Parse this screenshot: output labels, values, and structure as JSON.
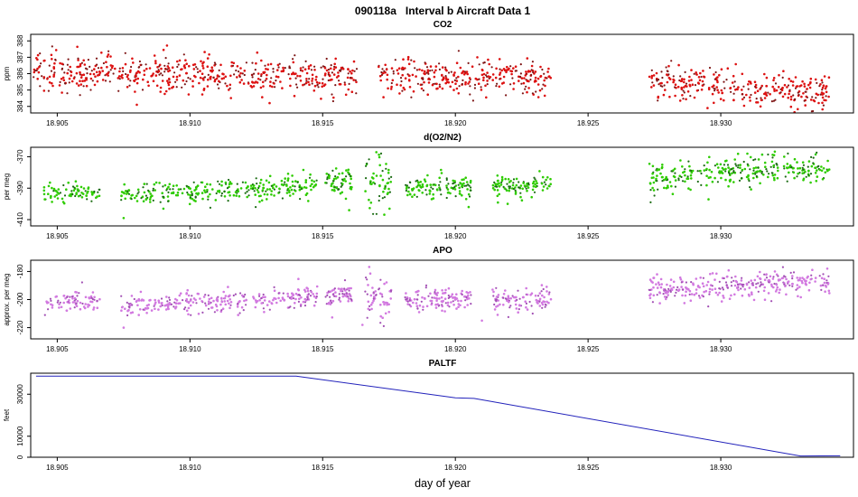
{
  "chart_data": {
    "type": "multi-panel-timeseries",
    "title": "090118a   Interval b Aircraft Data 1",
    "xlabel": "day of year",
    "x_range": [
      18.904,
      18.935
    ],
    "x_ticks": [
      "18.905",
      "18.910",
      "18.915",
      "18.920",
      "18.925",
      "18.930"
    ],
    "panels": [
      {
        "title": "CO2",
        "ylabel": "ppm",
        "type": "scatter",
        "color": "#dd1111",
        "color_dark": "#7e1515",
        "dark_frac": 0.33,
        "seed": 11,
        "y_range": [
          383.6,
          388.4
        ],
        "y_ticks": [
          "384",
          "385",
          "386",
          "387",
          "388"
        ],
        "segments": [
          {
            "x0": 18.9041,
            "x1": 18.9163,
            "y0": 386.1,
            "y1": 385.8,
            "spread": 0.55,
            "n": 560
          },
          {
            "x0": 18.9171,
            "x1": 18.9236,
            "y0": 385.9,
            "y1": 385.7,
            "spread": 0.5,
            "n": 300
          },
          {
            "x0": 18.9273,
            "x1": 18.9341,
            "y0": 385.5,
            "y1": 384.8,
            "spread": 0.5,
            "n": 300
          }
        ],
        "outliers": [
          [
            18.908,
            384.1
          ],
          [
            18.913,
            384.2
          ],
          [
            18.9295,
            383.9
          ],
          [
            18.9315,
            384.0
          ]
        ]
      },
      {
        "title": "d(O2/N2)",
        "ylabel": "per meg",
        "type": "scatter",
        "color": "#2ecc00",
        "color_dark": "#1a6b12",
        "dark_frac": 0.33,
        "seed": 22,
        "y_range": [
          -414,
          -364
        ],
        "y_ticks": [
          "-370",
          "-390",
          "-410"
        ],
        "segments": [
          {
            "x0": 18.9045,
            "x1": 18.9066,
            "y0": -393,
            "y1": -392,
            "spread": 3.5,
            "n": 80
          },
          {
            "x0": 18.9074,
            "x1": 18.9148,
            "y0": -394,
            "y1": -389,
            "spread": 3.5,
            "n": 280
          },
          {
            "x0": 18.9151,
            "x1": 18.9161,
            "y0": -386,
            "y1": -385,
            "spread": 4,
            "n": 60
          },
          {
            "x0": 18.9166,
            "x1": 18.9176,
            "y0": -388,
            "y1": -387,
            "spread": 8,
            "n": 55
          },
          {
            "x0": 18.9181,
            "x1": 18.9206,
            "y0": -390,
            "y1": -389,
            "spread": 3.5,
            "n": 120
          },
          {
            "x0": 18.9214,
            "x1": 18.9236,
            "y0": -389.5,
            "y1": -388.5,
            "spread": 3.5,
            "n": 100
          },
          {
            "x0": 18.9273,
            "x1": 18.9341,
            "y0": -383,
            "y1": -376,
            "spread": 4.5,
            "n": 300
          }
        ],
        "outliers": [
          [
            18.9075,
            -409
          ],
          [
            18.909,
            -403
          ],
          [
            18.916,
            -404
          ],
          [
            18.9205,
            -402
          ]
        ]
      },
      {
        "title": "APO",
        "ylabel": "approx. per meg",
        "type": "scatter",
        "color": "#d279e0",
        "color_dark": "#a24fb4",
        "dark_frac": 0.33,
        "seed": 33,
        "y_range": [
          -228,
          -172
        ],
        "y_ticks": [
          "-180",
          "-200",
          "-220"
        ],
        "segments": [
          {
            "x0": 18.9045,
            "x1": 18.9066,
            "y0": -202,
            "y1": -201,
            "spread": 3.5,
            "n": 80
          },
          {
            "x0": 18.9074,
            "x1": 18.9148,
            "y0": -204,
            "y1": -199,
            "spread": 4,
            "n": 280
          },
          {
            "x0": 18.9151,
            "x1": 18.9161,
            "y0": -197,
            "y1": -196,
            "spread": 4,
            "n": 60
          },
          {
            "x0": 18.9166,
            "x1": 18.9176,
            "y0": -198,
            "y1": -197,
            "spread": 9,
            "n": 55
          },
          {
            "x0": 18.9181,
            "x1": 18.9206,
            "y0": -200,
            "y1": -199,
            "spread": 4,
            "n": 120
          },
          {
            "x0": 18.9214,
            "x1": 18.9236,
            "y0": -201,
            "y1": -200,
            "spread": 4,
            "n": 100
          },
          {
            "x0": 18.9273,
            "x1": 18.9341,
            "y0": -193,
            "y1": -186,
            "spread": 4.5,
            "n": 300
          }
        ],
        "outliers": [
          [
            18.9075,
            -220
          ],
          [
            18.9165,
            -218
          ],
          [
            18.921,
            -215
          ]
        ]
      },
      {
        "title": "PALTF",
        "ylabel": "feet",
        "type": "line",
        "color": "#2222bb",
        "y_range": [
          0,
          40000
        ],
        "y_ticks": [
          "0",
          "10000",
          "30000"
        ],
        "points": [
          [
            18.9042,
            38600
          ],
          [
            18.914,
            38600
          ],
          [
            18.9196,
            29000
          ],
          [
            18.92,
            28300
          ],
          [
            18.9207,
            28000
          ],
          [
            18.933,
            600
          ],
          [
            18.9345,
            700
          ]
        ]
      }
    ]
  }
}
